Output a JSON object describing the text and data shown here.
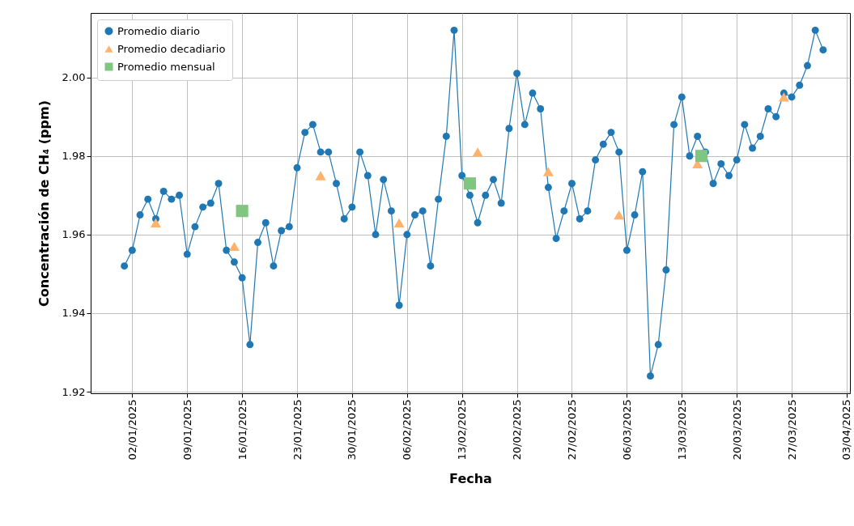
{
  "chart_data": {
    "type": "line",
    "xlabel": "Fecha",
    "ylabel": "Concentración de CH₄ (ppm)",
    "grid": true,
    "legend": "top left",
    "xlim": [
      "2024-12-27T17:00",
      "2025-04-03T10:00"
    ],
    "ylim": [
      1.9196,
      2.0164
    ],
    "yticks": [
      1.92,
      1.94,
      1.96,
      1.98,
      {
        "value": 2,
        "label": "2.00"
      }
    ],
    "xticks": [
      {
        "value": "2025-01-02",
        "label": "02/01/2025"
      },
      {
        "value": "2025-01-09",
        "label": "09/01/2025"
      },
      {
        "value": "2025-01-16",
        "label": "16/01/2025"
      },
      {
        "value": "2025-01-23",
        "label": "23/01/2025"
      },
      {
        "value": "2025-01-30",
        "label": "30/01/2025"
      },
      {
        "value": "2025-02-06",
        "label": "06/02/2025"
      },
      {
        "value": "2025-02-13",
        "label": "13/02/2025"
      },
      {
        "value": "2025-02-20",
        "label": "20/02/2025"
      },
      {
        "value": "2025-02-27",
        "label": "27/02/2025"
      },
      {
        "value": "2025-03-06",
        "label": "06/03/2025"
      },
      {
        "value": "2025-03-13",
        "label": "13/03/2025"
      },
      {
        "value": "2025-03-20",
        "label": "20/03/2025"
      },
      {
        "value": "2025-03-27",
        "label": "27/03/2025"
      },
      {
        "value": "2025-04-03",
        "label": "03/04/2025"
      }
    ],
    "series": [
      {
        "name": "Promedio diario",
        "type": "line",
        "marker": "circle",
        "color": "#1f77b4",
        "x": [
          "2025-01-01",
          "2025-01-02",
          "2025-01-03",
          "2025-01-04",
          "2025-01-05",
          "2025-01-06",
          "2025-01-07",
          "2025-01-08",
          "2025-01-09",
          "2025-01-10",
          "2025-01-11",
          "2025-01-12",
          "2025-01-13",
          "2025-01-14",
          "2025-01-15",
          "2025-01-16",
          "2025-01-17",
          "2025-01-18",
          "2025-01-19",
          "2025-01-20",
          "2025-01-21",
          "2025-01-22",
          "2025-01-23",
          "2025-01-24",
          "2025-01-25",
          "2025-01-26",
          "2025-01-27",
          "2025-01-28",
          "2025-01-29",
          "2025-01-30",
          "2025-01-31",
          "2025-02-01",
          "2025-02-02",
          "2025-02-03",
          "2025-02-04",
          "2025-02-05",
          "2025-02-06",
          "2025-02-07",
          "2025-02-08",
          "2025-02-09",
          "2025-02-10",
          "2025-02-11",
          "2025-02-12",
          "2025-02-13",
          "2025-02-14",
          "2025-02-15",
          "2025-02-16",
          "2025-02-17",
          "2025-02-18",
          "2025-02-19",
          "2025-02-20",
          "2025-02-21",
          "2025-02-22",
          "2025-02-23",
          "2025-02-24",
          "2025-02-25",
          "2025-02-26",
          "2025-02-27",
          "2025-02-28",
          "2025-03-01",
          "2025-03-02",
          "2025-03-03",
          "2025-03-04",
          "2025-03-05",
          "2025-03-06",
          "2025-03-07",
          "2025-03-08",
          "2025-03-09",
          "2025-03-10",
          "2025-03-11",
          "2025-03-12",
          "2025-03-13",
          "2025-03-14",
          "2025-03-15",
          "2025-03-16",
          "2025-03-17",
          "2025-03-18",
          "2025-03-19",
          "2025-03-20",
          "2025-03-21",
          "2025-03-22",
          "2025-03-23",
          "2025-03-24",
          "2025-03-25",
          "2025-03-26",
          "2025-03-27",
          "2025-03-28",
          "2025-03-29",
          "2025-03-30",
          "2025-03-31"
        ],
        "values": [
          1.952,
          1.956,
          1.965,
          1.969,
          1.964,
          1.971,
          1.969,
          1.97,
          1.955,
          1.962,
          1.967,
          1.968,
          1.973,
          1.956,
          1.953,
          1.949,
          1.932,
          1.958,
          1.963,
          1.952,
          1.961,
          1.962,
          1.977,
          1.986,
          1.988,
          1.981,
          1.981,
          1.973,
          1.964,
          1.967,
          1.981,
          1.975,
          1.96,
          1.974,
          1.966,
          1.942,
          1.96,
          1.965,
          1.966,
          1.952,
          1.969,
          1.985,
          2.012,
          1.975,
          1.97,
          1.963,
          1.97,
          1.974,
          1.968,
          1.987,
          2.001,
          1.988,
          1.996,
          1.992,
          1.972,
          1.959,
          1.966,
          1.973,
          1.964,
          1.966,
          1.979,
          1.983,
          1.986,
          1.981,
          1.956,
          1.965,
          1.976,
          1.924,
          1.932,
          1.951,
          1.988,
          1.995,
          1.98,
          1.985,
          1.981,
          1.973,
          1.978,
          1.975,
          1.979,
          1.988,
          1.982,
          1.985,
          1.992,
          1.99,
          1.996,
          1.995,
          1.998,
          2.003,
          2.012,
          2.007
        ]
      },
      {
        "name": "Promedio decadiario",
        "type": "scatter",
        "marker": "triangle",
        "color": "#ffb26e",
        "x": [
          "2025-01-05",
          "2025-01-15",
          "2025-01-26",
          "2025-02-05",
          "2025-02-15",
          "2025-02-24",
          "2025-03-05",
          "2025-03-15",
          "2025-03-26"
        ],
        "values": [
          1.963,
          1.957,
          1.975,
          1.963,
          1.981,
          1.976,
          1.965,
          1.978,
          1.995
        ]
      },
      {
        "name": "Promedio mensual",
        "type": "scatter",
        "marker": "square",
        "color": "#80c680",
        "x": [
          "2025-01-16",
          "2025-02-14",
          "2025-03-15T12:00"
        ],
        "values": [
          1.966,
          1.973,
          1.98
        ]
      }
    ]
  }
}
